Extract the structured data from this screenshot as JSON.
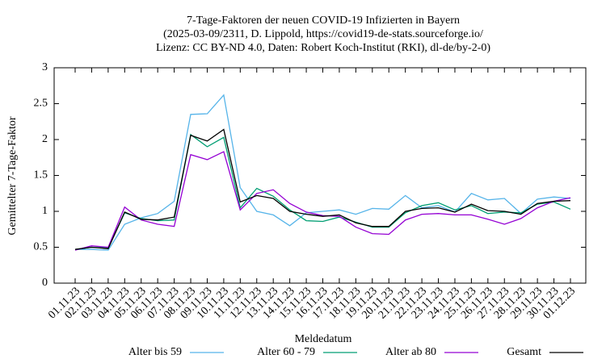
{
  "chart_data": {
    "type": "line",
    "title": [
      "7-Tage-Faktoren der neuen COVID-19 Infizierten in Bayern",
      "(2025-03-09/2311, D. Lippold, https://covid19-de-stats.sourceforge.io/",
      "Lizenz: CC BY-ND 4.0, Daten: Robert Koch-Institut (RKI), dl-de/by-2-0)"
    ],
    "x_label": "Meldedatum",
    "y_label": "Gemittelter 7-Tage-Faktor",
    "categories": [
      "01.11.23",
      "02.11.23",
      "03.11.23",
      "04.11.23",
      "05.11.23",
      "06.11.23",
      "07.11.23",
      "08.11.23",
      "09.11.23",
      "10.11.23",
      "11.11.23",
      "12.11.23",
      "13.11.23",
      "14.11.23",
      "15.11.23",
      "16.11.23",
      "17.11.23",
      "18.11.23",
      "19.11.23",
      "20.11.23",
      "21.11.23",
      "22.11.23",
      "23.11.23",
      "24.11.23",
      "25.11.23",
      "26.11.23",
      "27.11.23",
      "28.11.23",
      "29.11.23",
      "30.11.23",
      "01.12.23"
    ],
    "ylim": [
      0,
      3
    ],
    "yticks": [
      0,
      0.5,
      1,
      1.5,
      2,
      2.5,
      3
    ],
    "legend": "bottom",
    "series": [
      {
        "name": "Alter bis 59",
        "color": "#56b4e9",
        "values": [
          0.47,
          0.47,
          0.46,
          0.82,
          0.91,
          0.97,
          1.14,
          2.35,
          2.36,
          2.62,
          1.33,
          1.0,
          0.95,
          0.8,
          0.98,
          1.0,
          1.02,
          0.96,
          1.04,
          1.03,
          1.22,
          1.05,
          1.08,
          0.99,
          1.25,
          1.16,
          1.18,
          0.97,
          1.17,
          1.2,
          1.18
        ]
      },
      {
        "name": "Alter 60 - 79",
        "color": "#009e73",
        "values": [
          0.47,
          0.5,
          0.49,
          0.98,
          0.9,
          0.87,
          0.88,
          2.07,
          1.9,
          2.03,
          1.05,
          1.32,
          1.21,
          1.02,
          0.87,
          0.86,
          0.92,
          0.85,
          0.78,
          0.78,
          0.98,
          1.08,
          1.12,
          1.02,
          1.08,
          0.97,
          0.99,
          0.98,
          1.1,
          1.13,
          1.03
        ]
      },
      {
        "name": "Alter ab 80",
        "color": "#9400d3",
        "values": [
          0.46,
          0.52,
          0.5,
          1.06,
          0.88,
          0.82,
          0.79,
          1.79,
          1.72,
          1.83,
          1.02,
          1.25,
          1.3,
          1.11,
          0.99,
          0.94,
          0.93,
          0.78,
          0.69,
          0.68,
          0.88,
          0.96,
          0.97,
          0.95,
          0.95,
          0.89,
          0.82,
          0.9,
          1.05,
          1.14,
          1.19
        ]
      },
      {
        "name": "Gesamt",
        "color": "#000000",
        "values": [
          0.47,
          0.5,
          0.48,
          0.99,
          0.89,
          0.88,
          0.92,
          2.06,
          1.98,
          2.14,
          1.13,
          1.22,
          1.18,
          1.0,
          0.96,
          0.93,
          0.95,
          0.84,
          0.79,
          0.79,
          1.0,
          1.04,
          1.05,
          0.99,
          1.1,
          1.01,
          1.0,
          0.96,
          1.11,
          1.14,
          1.15
        ]
      }
    ]
  }
}
